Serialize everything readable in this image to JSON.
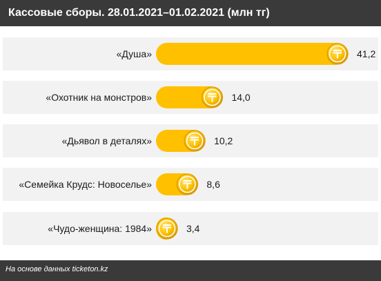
{
  "header": {
    "title": "Кассовые сборы. 28.01.2021–01.02.2021 (млн тг)"
  },
  "footer": {
    "source": "На основе данных ticketon.kz"
  },
  "colors": {
    "bar": "#ffc000",
    "coin": "#ffc400",
    "coin_dark": "#d99a00",
    "header_bg": "#3a3a3a",
    "panel_bg": "#f2f2f2"
  },
  "chart_data": {
    "type": "bar",
    "orientation": "horizontal",
    "categories": [
      "«Душа»",
      "«Охотник на монстров»",
      "«Дьявол в деталях»",
      "«Семейка Крудс: Новоселье»",
      "«Чудо-женщина: 1984»"
    ],
    "values": [
      41.2,
      14.0,
      10.2,
      8.6,
      3.4
    ],
    "value_labels": [
      "41,2",
      "14,0",
      "10,2",
      "8,6",
      "3,4"
    ],
    "unit_icon": "tenge-coin-icon",
    "title": "Кассовые сборы. 28.01.2021–01.02.2021 (млн тг)",
    "xlabel": "",
    "ylabel": "",
    "xlim": [
      0,
      41.2
    ],
    "grid": false,
    "legend": "none"
  }
}
